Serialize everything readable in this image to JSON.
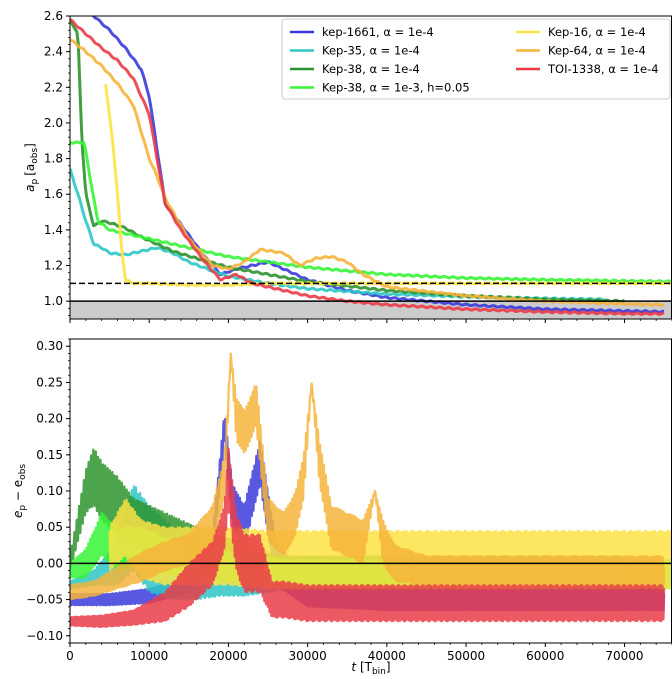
{
  "chart_data": [
    {
      "type": "line",
      "ylabel_main": "a",
      "ylabel_sub": "p",
      "ylabel_unit_open": "[a",
      "ylabel_unit_sub": "obs",
      "ylabel_unit_close": "]",
      "xlim": [
        0,
        76000
      ],
      "ylim": [
        0.9,
        2.6
      ],
      "x_ticks": [
        0,
        10000,
        20000,
        30000,
        40000,
        50000,
        60000,
        70000
      ],
      "y_ticks": [
        1.0,
        1.2,
        1.4,
        1.6,
        1.8,
        2.0,
        2.2,
        2.4,
        2.6
      ],
      "y_tick_labels": [
        "1.0",
        "1.2",
        "1.4",
        "1.6",
        "1.8",
        "2.0",
        "2.2",
        "2.4",
        "2.6"
      ],
      "reference_lines": [
        {
          "y": 1.0,
          "style": "solid",
          "color": "#000000"
        },
        {
          "y": 1.1,
          "style": "dashed",
          "color": "#000000"
        }
      ],
      "shaded_band": {
        "y_from": 0.9,
        "y_to": 1.0,
        "color": "#cccccc"
      },
      "legend_position": "top-right",
      "series": [
        {
          "name": "kep-1661, α = 1e-4",
          "color": "#3b3bdc",
          "x": [
            0,
            3000,
            5000,
            7000,
            9000,
            10000,
            11000,
            12000,
            14000,
            17000,
            19000,
            21000,
            23000,
            25000,
            27000,
            30000,
            35000,
            40000,
            50000,
            60000,
            70000,
            75000
          ],
          "y": [
            2.75,
            2.6,
            2.52,
            2.42,
            2.3,
            2.15,
            1.85,
            1.55,
            1.43,
            1.25,
            1.15,
            1.18,
            1.2,
            1.22,
            1.18,
            1.12,
            1.06,
            1.02,
            0.98,
            0.955,
            0.945,
            0.94
          ]
        },
        {
          "name": "Kep-35, α = 1e-4",
          "color": "#2ec7c7",
          "x": [
            0,
            1000,
            2000,
            3000,
            4000,
            5000,
            7000,
            9000,
            11000,
            13000,
            15000,
            18000,
            20000,
            25000,
            30000,
            40000,
            50000,
            60000,
            67500
          ],
          "y": [
            1.74,
            1.6,
            1.45,
            1.32,
            1.3,
            1.27,
            1.26,
            1.28,
            1.3,
            1.27,
            1.22,
            1.17,
            1.14,
            1.1,
            1.07,
            1.04,
            1.025,
            1.015,
            1.01
          ]
        },
        {
          "name": "Kep-38, α = 1e-4",
          "color": "#2d942d",
          "x": [
            0,
            1000,
            1500,
            2000,
            3000,
            4000,
            5000,
            7000,
            9000,
            11000,
            13000,
            16000,
            20000,
            25000,
            30000,
            40000,
            50000,
            60000,
            70000
          ],
          "y": [
            2.58,
            2.5,
            1.9,
            1.6,
            1.42,
            1.45,
            1.44,
            1.41,
            1.36,
            1.32,
            1.28,
            1.24,
            1.19,
            1.15,
            1.11,
            1.06,
            1.03,
            1.01,
            1.0
          ]
        },
        {
          "name": "Kep-38, α = 1e-3, h=0.05",
          "color": "#36f536",
          "x": [
            0,
            1000,
            1800,
            2500,
            3500,
            5000,
            8000,
            12000,
            16000,
            20000,
            25000,
            30000,
            40000,
            50000,
            60000,
            76000
          ],
          "y": [
            1.89,
            1.89,
            1.89,
            1.7,
            1.45,
            1.4,
            1.37,
            1.33,
            1.29,
            1.25,
            1.22,
            1.19,
            1.15,
            1.13,
            1.12,
            1.11
          ]
        },
        {
          "name": "Kep-16, α = 1e-4",
          "color": "#fde344",
          "x": [
            4500,
            5500,
            6000,
            6500,
            7000,
            8000,
            10000,
            15000,
            20000,
            25000,
            30000,
            40000,
            50000,
            60000,
            76000
          ],
          "y": [
            2.22,
            1.85,
            1.6,
            1.3,
            1.12,
            1.1,
            1.1,
            1.09,
            1.09,
            1.1,
            1.1,
            1.1,
            1.1,
            1.1,
            1.1
          ]
        },
        {
          "name": "Kep-64, α = 1e-4",
          "color": "#f6b43a",
          "x": [
            0,
            2000,
            4000,
            6000,
            8000,
            9000,
            10000,
            11000,
            12000,
            13000,
            15000,
            18000,
            20000,
            22000,
            24000,
            27000,
            29000,
            31000,
            33000,
            35000,
            37000,
            40000,
            50000,
            60000,
            70000,
            75000
          ],
          "y": [
            2.47,
            2.4,
            2.32,
            2.22,
            2.1,
            1.95,
            1.8,
            1.7,
            1.58,
            1.5,
            1.35,
            1.2,
            1.18,
            1.22,
            1.29,
            1.27,
            1.2,
            1.24,
            1.25,
            1.22,
            1.15,
            1.08,
            1.03,
            1.0,
            0.985,
            0.98
          ]
        },
        {
          "name": "TOI-1338, α = 1e-4",
          "color": "#ea3c48",
          "x": [
            0,
            2000,
            4000,
            6000,
            8000,
            10000,
            11000,
            12000,
            14000,
            17000,
            19000,
            21000,
            23000,
            26000,
            30000,
            35000,
            40000,
            50000,
            60000,
            70000,
            75000
          ],
          "y": [
            2.58,
            2.5,
            2.42,
            2.35,
            2.25,
            2.05,
            1.8,
            1.55,
            1.4,
            1.22,
            1.12,
            1.15,
            1.1,
            1.07,
            1.03,
            1.0,
            0.98,
            0.955,
            0.94,
            0.93,
            0.93
          ]
        }
      ]
    },
    {
      "type": "line",
      "ylabel_main": "e",
      "ylabel_sub": "p",
      "ylabel_mid": " − e",
      "ylabel_sub2": "obs",
      "xlabel_main": "t ",
      "xlabel_unit_open": "[T",
      "xlabel_unit_sub": "bin",
      "xlabel_unit_close": "]",
      "xlim": [
        0,
        76000
      ],
      "ylim": [
        -0.11,
        0.31
      ],
      "x_ticks": [
        0,
        10000,
        20000,
        30000,
        40000,
        50000,
        60000,
        70000
      ],
      "x_tick_labels": [
        "0",
        "10000",
        "20000",
        "30000",
        "40000",
        "50000",
        "60000",
        "70000"
      ],
      "y_ticks": [
        -0.1,
        -0.05,
        0.0,
        0.05,
        0.1,
        0.15,
        0.2,
        0.25,
        0.3
      ],
      "y_tick_labels": [
        "−0.10",
        "−0.05",
        "0.00",
        "0.05",
        "0.10",
        "0.15",
        "0.20",
        "0.25",
        "0.30"
      ],
      "reference_lines": [
        {
          "y": 0.0,
          "style": "solid",
          "color": "#000000"
        }
      ],
      "series": [
        {
          "name": "kep-1661, α = 1e-4",
          "color": "#3b3bdc",
          "x": [
            0,
            5000,
            10000,
            15000,
            18000,
            19500,
            20500,
            22000,
            24000,
            26000,
            30000,
            40000,
            50000,
            60000,
            75000
          ],
          "y": [
            -0.05,
            -0.05,
            -0.045,
            -0.03,
            0.02,
            0.19,
            0.08,
            0.05,
            0.14,
            0.0,
            -0.04,
            -0.05,
            -0.05,
            -0.05,
            -0.05
          ],
          "amp": [
            0.008,
            0.008,
            0.01,
            0.01,
            0.02,
            0.02,
            0.03,
            0.03,
            0.03,
            0.03,
            0.02,
            0.015,
            0.015,
            0.015,
            0.015
          ]
        },
        {
          "name": "Kep-35, α = 1e-4",
          "color": "#2ec7c7",
          "x": [
            0,
            3000,
            6000,
            8000,
            10000,
            13000,
            16000,
            19000,
            22000,
            25000,
            30000,
            35000,
            40000,
            50000,
            60000,
            67500
          ],
          "y": [
            -0.03,
            -0.02,
            0.0,
            0.05,
            0.02,
            0.0,
            -0.01,
            -0.015,
            -0.02,
            -0.02,
            -0.01,
            -0.01,
            -0.01,
            -0.01,
            -0.01,
            -0.01
          ],
          "amp": [
            0.005,
            0.01,
            0.03,
            0.06,
            0.06,
            0.05,
            0.04,
            0.03,
            0.025,
            0.02,
            0.02,
            0.015,
            0.015,
            0.015,
            0.015,
            0.015
          ]
        },
        {
          "name": "Kep-38, α = 1e-4",
          "color": "#2d942d",
          "x": [
            0,
            1000,
            2000,
            3000,
            4000,
            6000,
            8000,
            10000,
            14000,
            18000,
            22000,
            26000,
            30000,
            40000,
            50000,
            60000,
            70000
          ],
          "y": [
            0.0,
            0.05,
            0.1,
            0.12,
            0.1,
            0.08,
            0.06,
            0.05,
            0.03,
            0.01,
            0.0,
            -0.01,
            -0.01,
            -0.01,
            -0.01,
            -0.01,
            -0.01
          ],
          "amp": [
            0.01,
            0.02,
            0.03,
            0.04,
            0.04,
            0.04,
            0.03,
            0.03,
            0.03,
            0.03,
            0.03,
            0.02,
            0.02,
            0.02,
            0.02,
            0.02,
            0.02
          ]
        },
        {
          "name": "Kep-38, α = 1e-3, h=0.05",
          "color": "#36f536",
          "x": [
            0,
            2000,
            4000,
            6000,
            9000,
            12000,
            16000,
            20000,
            24000,
            28000,
            35000,
            45000,
            55000,
            65000,
            76000
          ],
          "y": [
            -0.01,
            0.0,
            0.04,
            0.02,
            0.02,
            0.01,
            0.0,
            -0.005,
            -0.01,
            -0.015,
            -0.015,
            -0.015,
            -0.015,
            -0.015,
            -0.015
          ],
          "amp": [
            0.01,
            0.02,
            0.03,
            0.03,
            0.03,
            0.025,
            0.02,
            0.02,
            0.02,
            0.02,
            0.02,
            0.02,
            0.02,
            0.02,
            0.02
          ]
        },
        {
          "name": "Kep-16, α = 1e-4",
          "color": "#fde344",
          "x": [
            5000,
            7000,
            9000,
            12000,
            16000,
            20000,
            25000,
            30000,
            40000,
            50000,
            60000,
            76000
          ],
          "y": [
            0.02,
            0.05,
            0.02,
            0.01,
            0.01,
            0.01,
            0.005,
            0.005,
            0.005,
            0.005,
            0.005,
            0.005
          ],
          "amp": [
            0.03,
            0.04,
            0.04,
            0.04,
            0.04,
            0.04,
            0.04,
            0.04,
            0.04,
            0.04,
            0.04,
            0.04
          ]
        },
        {
          "name": "Kep-64, α = 1e-4",
          "color": "#f6b43a",
          "x": [
            0,
            3000,
            6000,
            9000,
            12000,
            15000,
            18000,
            19500,
            20300,
            21000,
            22000,
            23500,
            25000,
            27000,
            28500,
            29500,
            30500,
            31500,
            33000,
            35000,
            37000,
            38500,
            39500,
            41000,
            45000,
            50000,
            60000,
            75000
          ],
          "y": [
            -0.04,
            -0.035,
            -0.02,
            -0.005,
            0.01,
            0.02,
            0.05,
            0.12,
            0.29,
            0.2,
            0.18,
            0.22,
            0.06,
            0.04,
            0.07,
            0.12,
            0.25,
            0.14,
            0.05,
            0.04,
            0.03,
            0.1,
            0.03,
            0.0,
            -0.01,
            -0.01,
            -0.01,
            -0.01
          ],
          "amp": [
            0.01,
            0.01,
            0.015,
            0.02,
            0.02,
            0.02,
            0.03,
            0.03,
            0.0,
            0.03,
            0.03,
            0.03,
            0.03,
            0.03,
            0.03,
            0.03,
            0.0,
            0.03,
            0.03,
            0.03,
            0.03,
            0.0,
            0.03,
            0.025,
            0.02,
            0.02,
            0.02,
            0.02
          ]
        },
        {
          "name": "TOI-1338, α = 1e-4",
          "color": "#ea3c48",
          "x": [
            0,
            4000,
            8000,
            12000,
            15000,
            18000,
            19500,
            20000,
            21000,
            22000,
            24000,
            25500,
            27000,
            30000,
            35000,
            40000,
            50000,
            60000,
            75000
          ],
          "y": [
            -0.08,
            -0.08,
            -0.075,
            -0.06,
            -0.03,
            0.0,
            0.05,
            0.12,
            0.03,
            0.0,
            0.0,
            -0.05,
            -0.05,
            -0.055,
            -0.055,
            -0.055,
            -0.055,
            -0.055,
            -0.055
          ],
          "amp": [
            0.006,
            0.008,
            0.01,
            0.02,
            0.03,
            0.03,
            0.03,
            0.04,
            0.04,
            0.04,
            0.04,
            0.025,
            0.025,
            0.025,
            0.025,
            0.025,
            0.025,
            0.025,
            0.025
          ]
        }
      ]
    }
  ],
  "legend": {
    "entries": [
      {
        "label": "kep-1661, α = 1e-4",
        "color": "#3b3bdc"
      },
      {
        "label": "Kep-35, α = 1e-4",
        "color": "#2ec7c7"
      },
      {
        "label": "Kep-38, α = 1e-4",
        "color": "#2d942d"
      },
      {
        "label": "Kep-38, α = 1e-3, h=0.05",
        "color": "#36f536"
      },
      {
        "label": "Kep-16, α = 1e-4",
        "color": "#fde344"
      },
      {
        "label": "Kep-64, α = 1e-4",
        "color": "#f6b43a"
      },
      {
        "label": "TOI-1338, α = 1e-4",
        "color": "#ea3c48"
      }
    ]
  }
}
